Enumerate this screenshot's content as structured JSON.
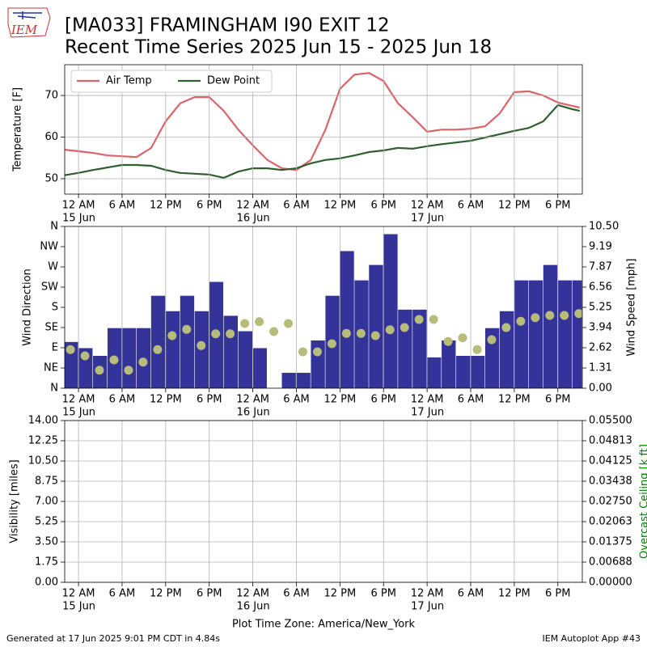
{
  "header": {
    "logo_text": "IEM",
    "title_line1": "[MA033] FRAMINGHAM I90 EXIT 12",
    "title_line2": "Recent Time Series 2025 Jun 15 - 2025 Jun 18"
  },
  "chart_data": [
    {
      "type": "line",
      "ylabel": "Temperature [F]",
      "grid": true,
      "legend": "upper left",
      "xlim": [
        "2025-06-14 22:06",
        "2025-06-17 21:22"
      ],
      "xticks": [
        {
          "value": "2025-06-15 00:00",
          "label": "12 AM"
        },
        {
          "value": "2025-06-15 06:00",
          "label": "6 AM"
        },
        {
          "value": "2025-06-15 12:00",
          "label": "12 PM"
        },
        {
          "value": "2025-06-15 18:00",
          "label": "6 PM"
        },
        {
          "value": "2025-06-16 00:00",
          "label": "12 AM"
        },
        {
          "value": "2025-06-16 06:00",
          "label": "6 AM"
        },
        {
          "value": "2025-06-16 12:00",
          "label": "12 PM"
        },
        {
          "value": "2025-06-16 18:00",
          "label": "6 PM"
        },
        {
          "value": "2025-06-17 00:00",
          "label": "12 AM"
        },
        {
          "value": "2025-06-17 06:00",
          "label": "6 AM"
        },
        {
          "value": "2025-06-17 12:00",
          "label": "12 PM"
        },
        {
          "value": "2025-06-17 18:00",
          "label": "6 PM"
        }
      ],
      "xtick_day_labels": [
        {
          "value": "2025-06-15 00:00",
          "label": "15 Jun"
        },
        {
          "value": "2025-06-16 00:00",
          "label": "16 Jun"
        },
        {
          "value": "2025-06-17 00:00",
          "label": "17 Jun"
        }
      ],
      "ylim": [
        46.3,
        77.4
      ],
      "yticks": [
        50,
        60,
        70
      ],
      "x": [
        "2025-06-14 22:00",
        "2025-06-15 00:00",
        "2025-06-15 02:00",
        "2025-06-15 04:00",
        "2025-06-15 06:00",
        "2025-06-15 08:00",
        "2025-06-15 10:00",
        "2025-06-15 12:00",
        "2025-06-15 14:00",
        "2025-06-15 16:00",
        "2025-06-15 18:00",
        "2025-06-15 20:00",
        "2025-06-15 22:00",
        "2025-06-16 00:00",
        "2025-06-16 02:00",
        "2025-06-16 04:00",
        "2025-06-16 06:00",
        "2025-06-16 08:00",
        "2025-06-16 10:00",
        "2025-06-16 12:00",
        "2025-06-16 14:00",
        "2025-06-16 16:00",
        "2025-06-16 18:00",
        "2025-06-16 20:00",
        "2025-06-16 22:00",
        "2025-06-17 00:00",
        "2025-06-17 02:00",
        "2025-06-17 04:00",
        "2025-06-17 06:00",
        "2025-06-17 08:00",
        "2025-06-17 10:00",
        "2025-06-17 12:00",
        "2025-06-17 14:00",
        "2025-06-17 16:00",
        "2025-06-17 18:00",
        "2025-06-17 20:00",
        "2025-06-17 21:00"
      ],
      "series": [
        {
          "name": "Air Temp",
          "color": "#d9646a",
          "values": [
            57.0,
            56.6,
            56.2,
            55.6,
            55.4,
            55.2,
            57.4,
            63.8,
            68.1,
            69.6,
            69.6,
            66.3,
            61.8,
            58.0,
            54.5,
            52.5,
            52.1,
            54.5,
            61.8,
            71.6,
            75.0,
            75.4,
            73.5,
            68.1,
            64.8,
            61.3,
            61.8,
            61.8,
            62.0,
            62.6,
            65.7,
            70.8,
            71.0,
            70.0,
            68.3,
            67.5,
            67.1
          ]
        },
        {
          "name": "Dew Point",
          "color": "#2f5f2f",
          "values": [
            50.8,
            51.4,
            52.1,
            52.7,
            53.3,
            53.3,
            53.1,
            52.1,
            51.4,
            51.2,
            51.0,
            50.2,
            51.7,
            52.5,
            52.5,
            52.1,
            52.5,
            53.7,
            54.5,
            54.9,
            55.6,
            56.4,
            56.8,
            57.4,
            57.2,
            57.8,
            58.3,
            58.7,
            59.1,
            59.9,
            60.7,
            61.5,
            62.2,
            63.8,
            67.7,
            66.7,
            66.3
          ]
        }
      ]
    },
    {
      "type": "wind",
      "ylabel": "Wind Direction",
      "y2label": "Wind Speed [mph]",
      "grid": true,
      "xlim": [
        "2025-06-14 22:06",
        "2025-06-17 21:22"
      ],
      "xticks": [
        {
          "value": "2025-06-15 00:00",
          "label": "12 AM"
        },
        {
          "value": "2025-06-15 06:00",
          "label": "6 AM"
        },
        {
          "value": "2025-06-15 12:00",
          "label": "12 PM"
        },
        {
          "value": "2025-06-15 18:00",
          "label": "6 PM"
        },
        {
          "value": "2025-06-16 00:00",
          "label": "12 AM"
        },
        {
          "value": "2025-06-16 06:00",
          "label": "6 AM"
        },
        {
          "value": "2025-06-16 12:00",
          "label": "12 PM"
        },
        {
          "value": "2025-06-16 18:00",
          "label": "6 PM"
        },
        {
          "value": "2025-06-17 00:00",
          "label": "12 AM"
        },
        {
          "value": "2025-06-17 06:00",
          "label": "6 AM"
        },
        {
          "value": "2025-06-17 12:00",
          "label": "12 PM"
        },
        {
          "value": "2025-06-17 18:00",
          "label": "6 PM"
        }
      ],
      "xtick_day_labels": [
        {
          "value": "2025-06-15 00:00",
          "label": "15 Jun"
        },
        {
          "value": "2025-06-16 00:00",
          "label": "16 Jun"
        },
        {
          "value": "2025-06-17 00:00",
          "label": "17 Jun"
        }
      ],
      "ylim": [
        0,
        360
      ],
      "yticks": [
        {
          "value": 0,
          "label": "N"
        },
        {
          "value": 45,
          "label": "NE"
        },
        {
          "value": 90,
          "label": "E"
        },
        {
          "value": 135,
          "label": "SE"
        },
        {
          "value": 180,
          "label": "S"
        },
        {
          "value": 225,
          "label": "SW"
        },
        {
          "value": 270,
          "label": "W"
        },
        {
          "value": 315,
          "label": "NW"
        },
        {
          "value": 360,
          "label": "N"
        }
      ],
      "y2lim": [
        0,
        10.5
      ],
      "y2ticks": [
        {
          "value": 0,
          "label": "0.00"
        },
        {
          "value": 1.3125,
          "label": "1.31"
        },
        {
          "value": 2.625,
          "label": "2.62"
        },
        {
          "value": 3.9375,
          "label": "3.94"
        },
        {
          "value": 5.25,
          "label": "5.25"
        },
        {
          "value": 6.5625,
          "label": "6.56"
        },
        {
          "value": 7.875,
          "label": "7.87"
        },
        {
          "value": 9.1875,
          "label": "9.19"
        },
        {
          "value": 10.5,
          "label": "10.50"
        }
      ],
      "x": [
        "2025-06-14 22:00",
        "2025-06-15 00:00",
        "2025-06-15 02:00",
        "2025-06-15 04:00",
        "2025-06-15 06:00",
        "2025-06-15 08:00",
        "2025-06-15 10:00",
        "2025-06-15 12:00",
        "2025-06-15 14:00",
        "2025-06-15 16:00",
        "2025-06-15 18:00",
        "2025-06-15 20:00",
        "2025-06-15 22:00",
        "2025-06-16 00:00",
        "2025-06-16 02:00",
        "2025-06-16 04:00",
        "2025-06-16 06:00",
        "2025-06-16 08:00",
        "2025-06-16 10:00",
        "2025-06-16 12:00",
        "2025-06-16 14:00",
        "2025-06-16 16:00",
        "2025-06-16 18:00",
        "2025-06-16 20:00",
        "2025-06-16 22:00",
        "2025-06-17 00:00",
        "2025-06-17 02:00",
        "2025-06-17 04:00",
        "2025-06-17 06:00",
        "2025-06-17 08:00",
        "2025-06-17 10:00",
        "2025-06-17 12:00",
        "2025-06-17 14:00",
        "2025-06-17 16:00",
        "2025-06-17 18:00",
        "2025-06-17 20:00"
      ],
      "series": [
        {
          "kind": "bar",
          "axis": "y2",
          "color": "#333399",
          "values": [
            3.0,
            2.6,
            2.1,
            3.9,
            3.9,
            3.9,
            6.0,
            5.0,
            6.0,
            5.0,
            6.9,
            4.7,
            3.7,
            2.6,
            0,
            1.0,
            1.0,
            3.1,
            6.0,
            8.9,
            7.0,
            8.0,
            10.0,
            5.1,
            5.1,
            2.0,
            3.1,
            2.1,
            2.1,
            3.9,
            5.0,
            7.0,
            7.0,
            8.0,
            7.0,
            7.0
          ]
        },
        {
          "kind": "scatter",
          "color": "#b8bc7a",
          "values": [
            86,
            72,
            40,
            63,
            40,
            58,
            86,
            117,
            131,
            95,
            121,
            121,
            144,
            148,
            126,
            144,
            81,
            81,
            99,
            122,
            122,
            117,
            130,
            135,
            153,
            153,
            104,
            112,
            86,
            108,
            135,
            149,
            157,
            162,
            162,
            166
          ]
        }
      ]
    },
    {
      "type": "line",
      "ylabel": "Visibility [miles]",
      "y2label": "Overcast Ceiling [k ft]",
      "y2label_color": "green",
      "grid": true,
      "xlim": [
        "2025-06-14 22:06",
        "2025-06-17 21:22"
      ],
      "xticks": [
        {
          "value": "2025-06-15 00:00",
          "label": "12 AM"
        },
        {
          "value": "2025-06-15 06:00",
          "label": "6 AM"
        },
        {
          "value": "2025-06-15 12:00",
          "label": "12 PM"
        },
        {
          "value": "2025-06-15 18:00",
          "label": "6 PM"
        },
        {
          "value": "2025-06-16 00:00",
          "label": "12 AM"
        },
        {
          "value": "2025-06-16 06:00",
          "label": "6 AM"
        },
        {
          "value": "2025-06-16 12:00",
          "label": "12 PM"
        },
        {
          "value": "2025-06-16 18:00",
          "label": "6 PM"
        },
        {
          "value": "2025-06-17 00:00",
          "label": "12 AM"
        },
        {
          "value": "2025-06-17 06:00",
          "label": "6 AM"
        },
        {
          "value": "2025-06-17 12:00",
          "label": "12 PM"
        },
        {
          "value": "2025-06-17 18:00",
          "label": "6 PM"
        }
      ],
      "xtick_day_labels": [
        {
          "value": "2025-06-15 00:00",
          "label": "15 Jun"
        },
        {
          "value": "2025-06-16 00:00",
          "label": "16 Jun"
        },
        {
          "value": "2025-06-17 00:00",
          "label": "17 Jun"
        }
      ],
      "ylim": [
        0,
        14
      ],
      "yticks": [
        {
          "value": 0,
          "label": "0.00"
        },
        {
          "value": 1.75,
          "label": "1.75"
        },
        {
          "value": 3.5,
          "label": "3.50"
        },
        {
          "value": 5.25,
          "label": "5.25"
        },
        {
          "value": 7,
          "label": "7.00"
        },
        {
          "value": 8.75,
          "label": "8.75"
        },
        {
          "value": 10.5,
          "label": "10.50"
        },
        {
          "value": 12.25,
          "label": "12.25"
        },
        {
          "value": 14,
          "label": "14.00"
        }
      ],
      "y2lim": [
        0,
        0.055
      ],
      "y2ticks": [
        {
          "value": 0,
          "label": "0.00000"
        },
        {
          "value": 0.006875,
          "label": "0.00688"
        },
        {
          "value": 0.01375,
          "label": "0.01375"
        },
        {
          "value": 0.020625,
          "label": "0.02063"
        },
        {
          "value": 0.0275,
          "label": "0.02750"
        },
        {
          "value": 0.034375,
          "label": "0.03438"
        },
        {
          "value": 0.04125,
          "label": "0.04125"
        },
        {
          "value": 0.048125,
          "label": "0.04813"
        },
        {
          "value": 0.055,
          "label": "0.05500"
        }
      ],
      "x": [],
      "series": []
    }
  ],
  "footer": {
    "timezone": "Plot Time Zone: America/New_York",
    "generated": "Generated at 17 Jun 2025 9:01 PM CDT in 4.84s",
    "app": "IEM Autoplot App #43"
  }
}
